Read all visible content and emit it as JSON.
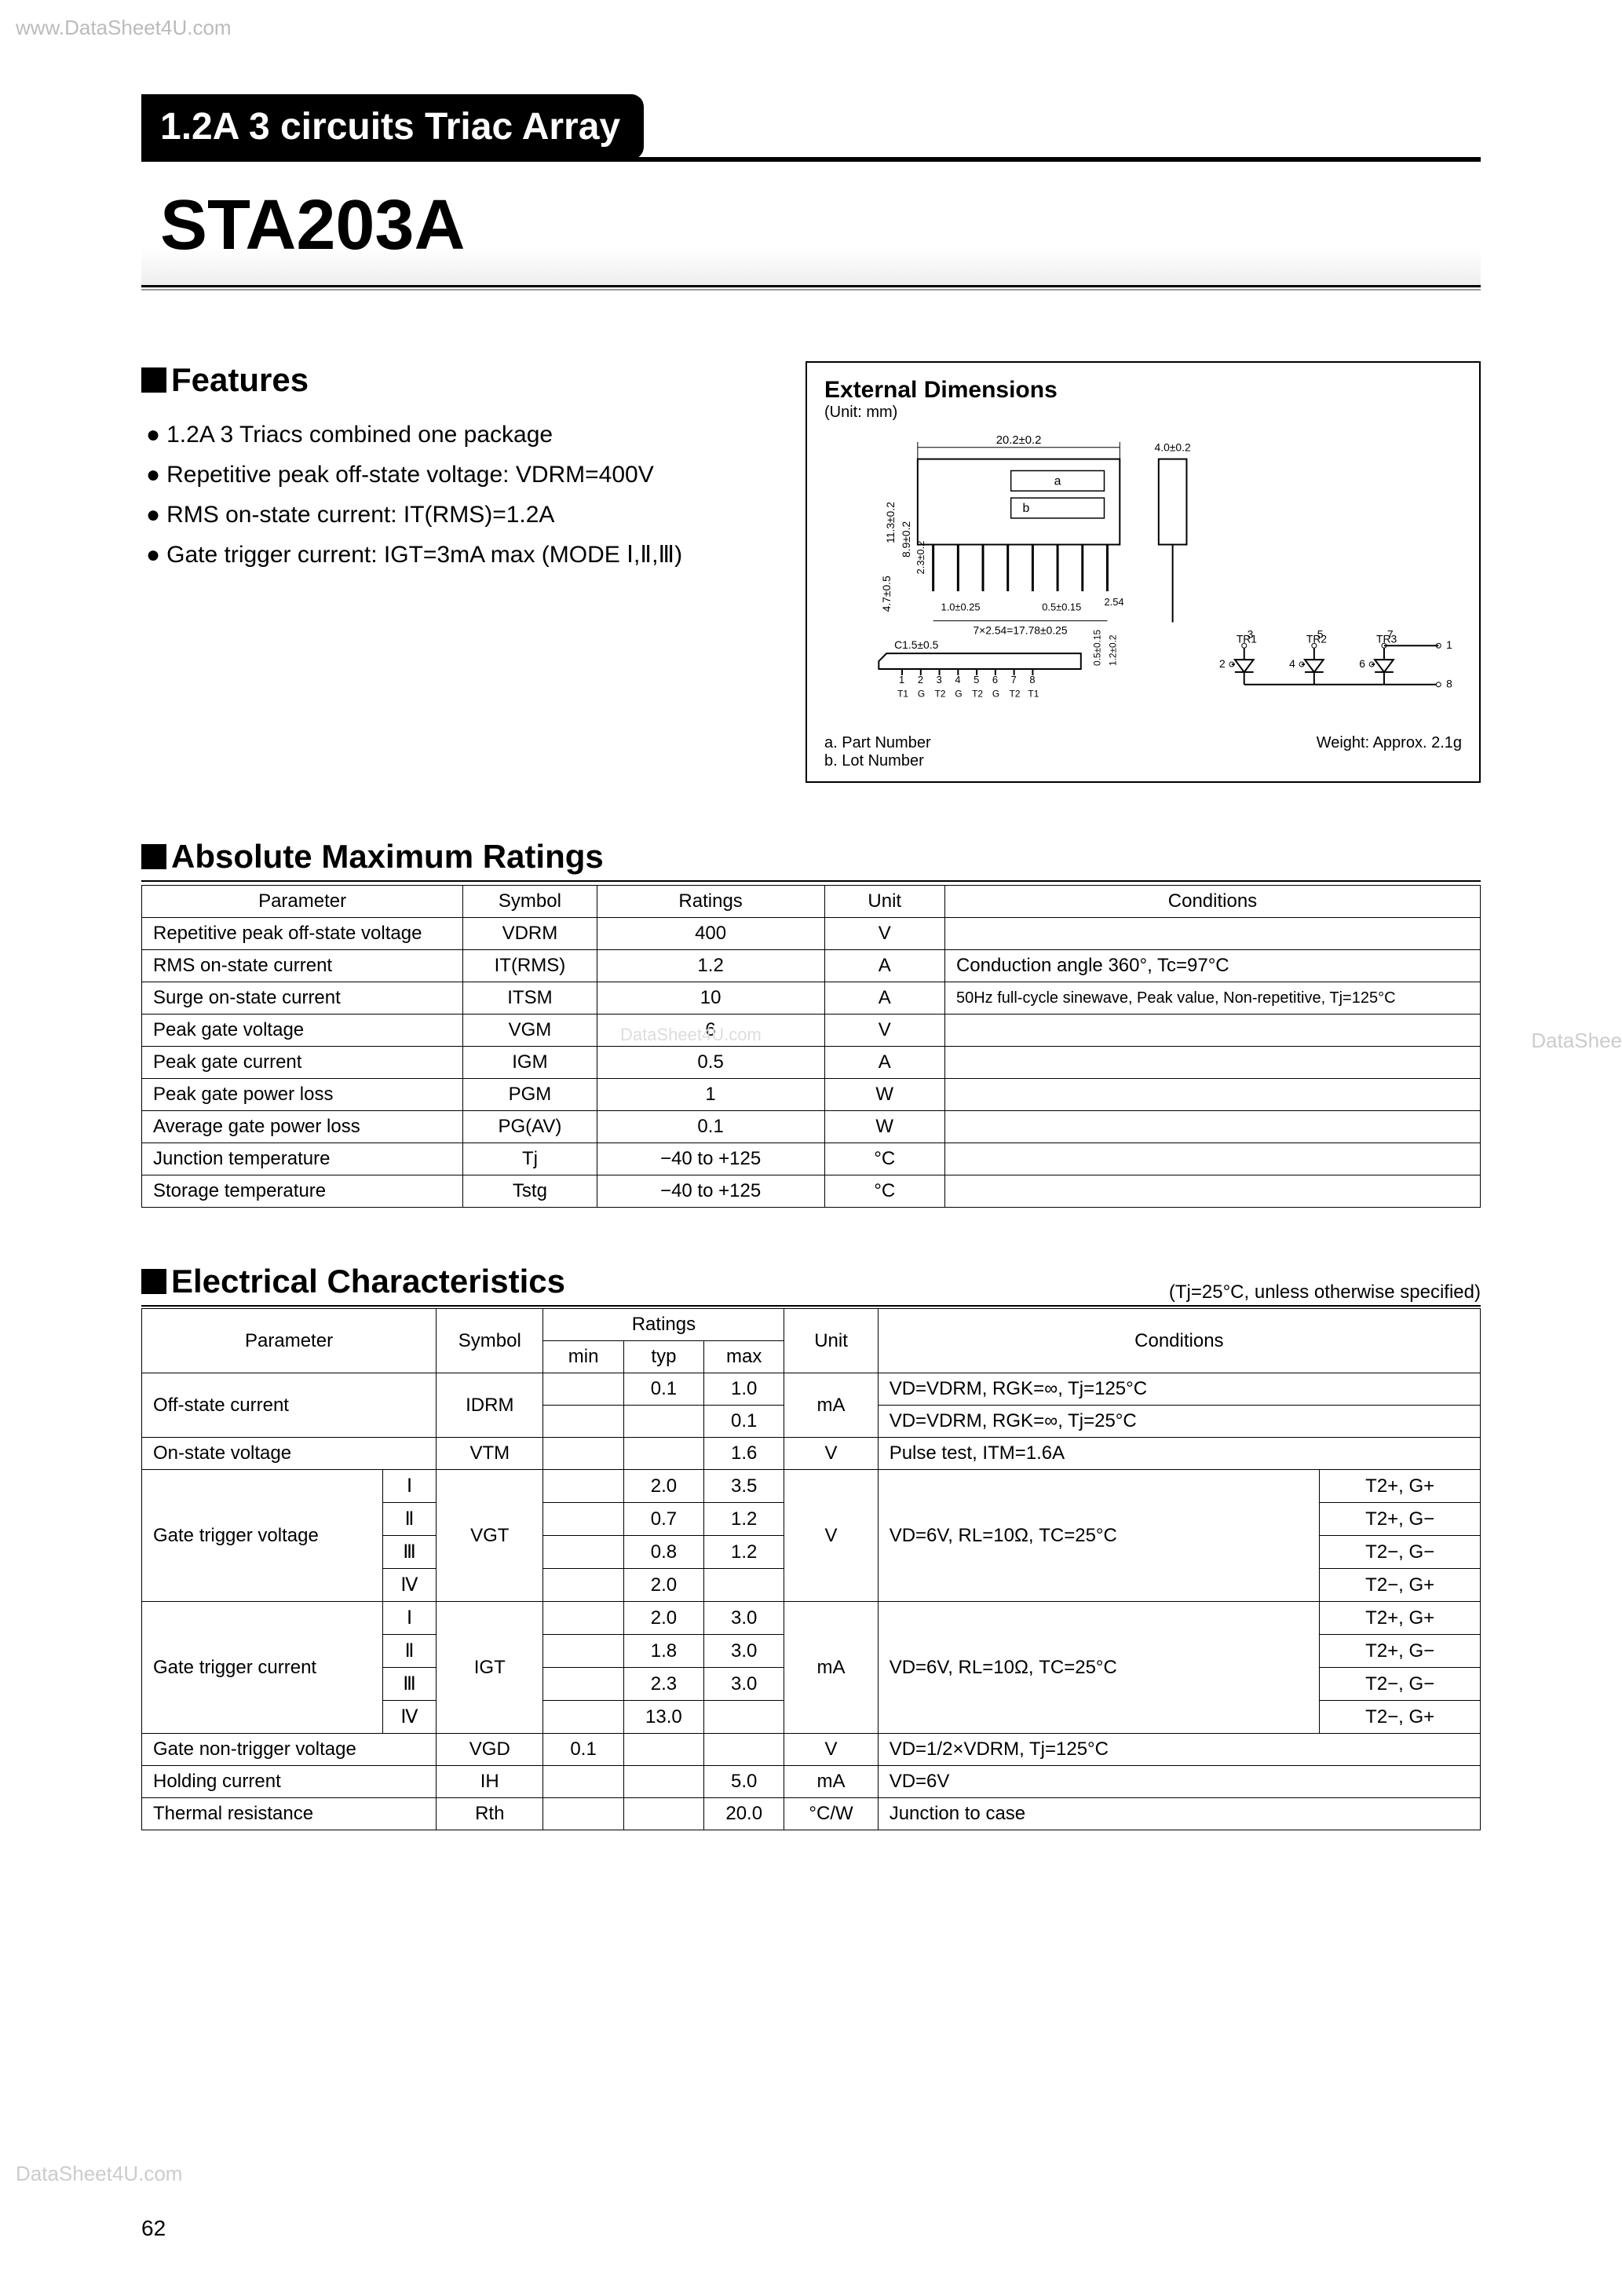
{
  "watermarks": {
    "top": "www.DataSheet4U.com",
    "bottom": "DataSheet4U.com",
    "side": "DataShee",
    "center": "DataSheet4U.com"
  },
  "header": {
    "tab": "1.2A 3 circuits Triac Array",
    "part": "STA203A"
  },
  "features": {
    "heading": "Features",
    "items": [
      "1.2A 3 Triacs combined one package",
      "Repetitive peak off-state voltage: VDRM=400V",
      "RMS on-state current: IT(RMS)=1.2A",
      "Gate trigger current: IGT=3mA max (MODE Ⅰ,Ⅱ,Ⅲ)"
    ]
  },
  "dimensions": {
    "title": "External Dimensions",
    "unit": "(Unit: mm)",
    "labels": {
      "top_w": "20.2±0.2",
      "pin_h": "4.0±0.2",
      "body_h1": "11.3±0.2",
      "body_h2": "8.9±0.2",
      "body_h3": "2.3±0.2",
      "tab_h": "4.7±0.5",
      "pin_off": "1.0±0.25",
      "pin_w": "0.5±0.15",
      "pitch": "2.54",
      "span": "7×2.54=17.78±0.25",
      "a": "a",
      "b": "b",
      "chamfer": "C1.5±0.5",
      "pin_small": "0.5±0.15",
      "lead": "1.2±0.2",
      "tr1": "TR1",
      "tr2": "TR2",
      "tr3": "TR3",
      "pins": [
        "1",
        "2",
        "3",
        "4",
        "5",
        "6",
        "7",
        "8"
      ],
      "pin_names": [
        "T1",
        "G",
        "T2",
        "G",
        "T2",
        "G",
        "T2",
        "T1"
      ]
    },
    "footer_a": "a. Part Number",
    "footer_b": "b. Lot Number",
    "weight": "Weight: Approx. 2.1g"
  },
  "amr": {
    "heading": "Absolute Maximum Ratings",
    "columns": [
      "Parameter",
      "Symbol",
      "Ratings",
      "Unit",
      "Conditions"
    ],
    "rows": [
      [
        "Repetitive peak off-state voltage",
        "VDRM",
        "400",
        "V",
        ""
      ],
      [
        "RMS on-state current",
        "IT(RMS)",
        "1.2",
        "A",
        "Conduction angle 360°, Tc=97°C"
      ],
      [
        "Surge on-state current",
        "ITSM",
        "10",
        "A",
        "50Hz full-cycle sinewave, Peak value, Non-repetitive, Tj=125°C"
      ],
      [
        "Peak gate voltage",
        "VGM",
        "6",
        "V",
        ""
      ],
      [
        "Peak gate current",
        "IGM",
        "0.5",
        "A",
        ""
      ],
      [
        "Peak gate power loss",
        "PGM",
        "1",
        "W",
        ""
      ],
      [
        "Average gate power loss",
        "PG(AV)",
        "0.1",
        "W",
        ""
      ],
      [
        "Junction temperature",
        "Tj",
        "−40 to +125",
        "°C",
        ""
      ],
      [
        "Storage temperature",
        "Tstg",
        "−40 to +125",
        "°C",
        ""
      ]
    ]
  },
  "ec": {
    "heading": "Electrical Characteristics",
    "note": "(Tj=25°C, unless otherwise specified)",
    "header": {
      "param": "Parameter",
      "symbol": "Symbol",
      "ratings": "Ratings",
      "min": "min",
      "typ": "typ",
      "max": "max",
      "unit": "Unit",
      "cond": "Conditions"
    },
    "offstate": {
      "param": "Off-state current",
      "symbol": "IDRM",
      "r1": {
        "typ": "0.1",
        "max": "1.0",
        "cond": "VD=VDRM, RGK=∞, Tj=125°C"
      },
      "r2": {
        "max": "0.1",
        "cond": "VD=VDRM, RGK=∞, Tj=25°C"
      },
      "unit": "mA"
    },
    "onstate": {
      "param": "On-state voltage",
      "symbol": "VTM",
      "max": "1.6",
      "unit": "V",
      "cond": "Pulse test, ITM=1.6A"
    },
    "vgt": {
      "param": "Gate trigger voltage",
      "symbol": "VGT",
      "unit": "V",
      "cond": "VD=6V, RL=10Ω, TC=25°C",
      "modes": [
        {
          "m": "Ⅰ",
          "typ": "2.0",
          "max": "3.5",
          "pol": "T2+, G+"
        },
        {
          "m": "Ⅱ",
          "typ": "0.7",
          "max": "1.2",
          "pol": "T2+, G−"
        },
        {
          "m": "Ⅲ",
          "typ": "0.8",
          "max": "1.2",
          "pol": "T2−, G−"
        },
        {
          "m": "Ⅳ",
          "typ": "2.0",
          "max": "",
          "pol": "T2−, G+"
        }
      ]
    },
    "igt": {
      "param": "Gate trigger current",
      "symbol": "IGT",
      "unit": "mA",
      "cond": "VD=6V, RL=10Ω, TC=25°C",
      "modes": [
        {
          "m": "Ⅰ",
          "typ": "2.0",
          "max": "3.0",
          "pol": "T2+, G+"
        },
        {
          "m": "Ⅱ",
          "typ": "1.8",
          "max": "3.0",
          "pol": "T2+, G−"
        },
        {
          "m": "Ⅲ",
          "typ": "2.3",
          "max": "3.0",
          "pol": "T2−, G−"
        },
        {
          "m": "Ⅳ",
          "typ": "13.0",
          "max": "",
          "pol": "T2−, G+"
        }
      ]
    },
    "vgd": {
      "param": "Gate non-trigger voltage",
      "symbol": "VGD",
      "min": "0.1",
      "unit": "V",
      "cond": "VD=1/2×VDRM, Tj=125°C"
    },
    "ih": {
      "param": "Holding current",
      "symbol": "IH",
      "max": "5.0",
      "unit": "mA",
      "cond": "VD=6V"
    },
    "rth": {
      "param": "Thermal resistance",
      "symbol": "Rth",
      "max": "20.0",
      "unit": "°C/W",
      "cond": "Junction to case"
    }
  },
  "page_num": "62",
  "colors": {
    "text": "#000000",
    "bg": "#ffffff",
    "watermark": "#bbbbbb",
    "border": "#000000"
  }
}
